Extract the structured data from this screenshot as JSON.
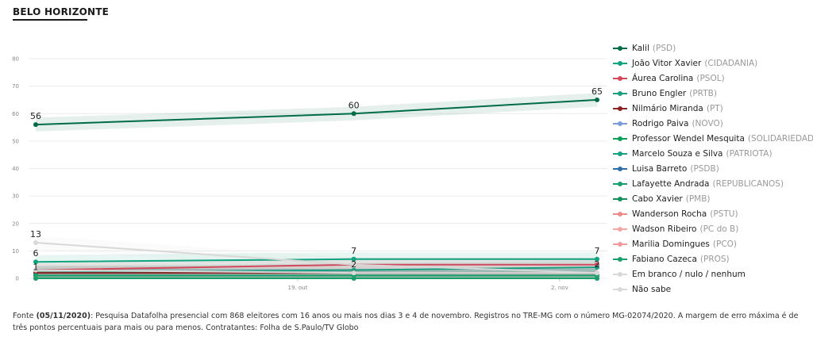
{
  "page": {
    "title": "BELO HORIZONTE"
  },
  "chart_data": {
    "type": "line",
    "ylim": [
      0,
      80
    ],
    "yticks": [
      0,
      10,
      20,
      30,
      40,
      50,
      60,
      70,
      80
    ],
    "x": [
      "2020-10-05",
      "2020-10-22",
      "2020-11-04"
    ],
    "xticks": [
      {
        "date": "2020-10-19",
        "label": "19. out"
      },
      {
        "date": "2020-11-02",
        "label": "2. nov"
      }
    ],
    "grid": true,
    "legend": "right",
    "series": [
      {
        "name": "Kalil",
        "party": "(PSD)",
        "color": "#006c45",
        "values": [
          56,
          60,
          65
        ],
        "labels": [
          "56",
          "60",
          "65"
        ]
      },
      {
        "name": "João Vitor Xavier",
        "party": "(CIDADANIA)",
        "color": "#10a37f",
        "values": [
          6,
          7,
          7
        ],
        "labels": [
          "6",
          "7",
          "7"
        ]
      },
      {
        "name": "Áurea Carolina",
        "party": "(PSOL)",
        "color": "#d1495b",
        "values": [
          3,
          5,
          5
        ],
        "labels": [
          "",
          "",
          ""
        ]
      },
      {
        "name": "Bruno Engler",
        "party": "(PRTB)",
        "color": "#1a9e80",
        "values": [
          2,
          3,
          4
        ],
        "labels": [
          "",
          "",
          ""
        ]
      },
      {
        "name": "Nilmário Miranda",
        "party": "(PT)",
        "color": "#8b2323",
        "values": [
          2,
          2,
          2
        ],
        "labels": [
          "",
          "2",
          "2"
        ]
      },
      {
        "name": "Rodrigo Paiva",
        "party": "(NOVO)",
        "color": "#7b9bd9",
        "values": [
          1,
          1,
          1
        ],
        "labels": [
          "1",
          "",
          ""
        ]
      },
      {
        "name": "Professor Wendel Mesquita",
        "party": "(SOLIDARIEDADE)",
        "color": "#0aa05a",
        "values": [
          1,
          1,
          1
        ],
        "labels": [
          "",
          "",
          ""
        ]
      },
      {
        "name": "Marcelo Souza e Silva",
        "party": "(PATRIOTA)",
        "color": "#17a187",
        "values": [
          1,
          1,
          1
        ],
        "labels": [
          "",
          "",
          ""
        ]
      },
      {
        "name": "Luisa Barreto",
        "party": "(PSDB)",
        "color": "#2d6ea8",
        "values": [
          1,
          1,
          1
        ],
        "labels": [
          "",
          "",
          ""
        ]
      },
      {
        "name": "Lafayette Andrada",
        "party": "(REPUBLICANOS)",
        "color": "#16a06c",
        "values": [
          1,
          1,
          1
        ],
        "labels": [
          "",
          "",
          ""
        ]
      },
      {
        "name": "Cabo Xavier",
        "party": "(PMB)",
        "color": "#158f5c",
        "values": [
          0,
          0,
          0
        ],
        "labels": [
          "",
          "",
          ""
        ]
      },
      {
        "name": "Wanderson Rocha",
        "party": "(PSTU)",
        "color": "#f08a8a",
        "values": [
          0,
          0,
          0
        ],
        "labels": [
          "",
          "",
          ""
        ]
      },
      {
        "name": "Wadson Ribeiro",
        "party": "(PC do B)",
        "color": "#f4a6a6",
        "values": [
          0,
          0,
          0
        ],
        "labels": [
          "",
          "",
          ""
        ]
      },
      {
        "name": "Marilia Domingues",
        "party": "(PCO)",
        "color": "#f39b9b",
        "values": [
          0,
          0,
          0
        ],
        "labels": [
          "",
          "",
          ""
        ]
      },
      {
        "name": "Fabiano Cazeca",
        "party": "(PROS)",
        "color": "#18a06a",
        "values": [
          0,
          0,
          0
        ],
        "labels": [
          "",
          "",
          ""
        ]
      },
      {
        "name": "Em branco / nulo / nenhum",
        "party": "",
        "color": "#d8d8d8",
        "values": [
          13,
          5,
          2
        ],
        "labels": [
          "13",
          "",
          ""
        ]
      },
      {
        "name": "Não sabe",
        "party": "",
        "color": "#dadada",
        "values": [
          3,
          2,
          2
        ],
        "labels": [
          "",
          "",
          ""
        ]
      }
    ]
  },
  "source": {
    "prefix": "Fonte ",
    "date": "(05/11/2020)",
    "text": ": Pesquisa Datafolha presencial com 868 eleitores com 16 anos ou mais nos dias 3 e 4 de novembro. Registros no TRE-MG com o número MG-02074/2020. A margem de erro máxima é de três pontos percentuais para mais ou para menos. Contratantes: Folha de S.Paulo/TV Globo"
  }
}
